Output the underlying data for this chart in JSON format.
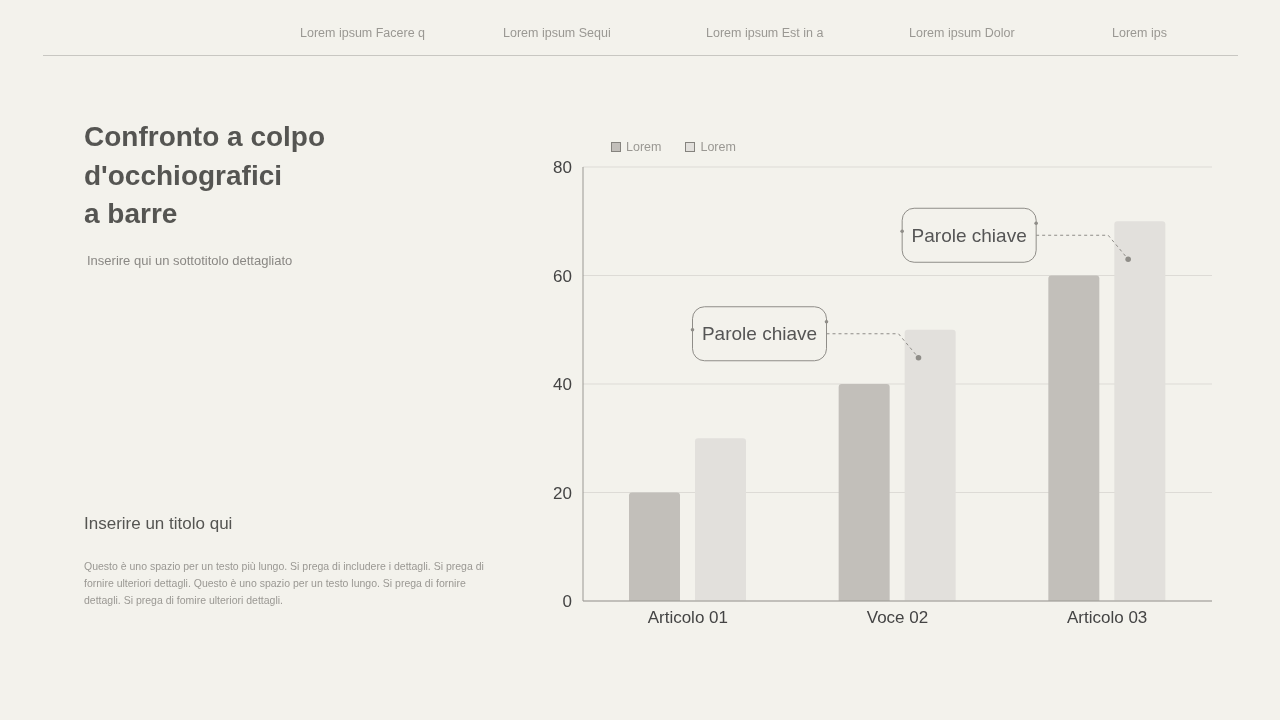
{
  "chart_data": {
    "type": "bar",
    "title": "Confronto a colpo\nd'occhiografici\na barre",
    "subtitle": "Inserire qui un sottotitolo dettagliato",
    "categories": [
      "Articolo 01",
      "Voce 02",
      "Articolo 03"
    ],
    "series": [
      {
        "name": "Lorem",
        "color": "#c2bfba",
        "values": [
          20,
          40,
          60
        ]
      },
      {
        "name": "Lorem",
        "color": "#e2e0dc",
        "values": [
          30,
          50,
          70
        ]
      }
    ],
    "ylim": [
      0,
      80
    ],
    "yticks": [
      0,
      20,
      40,
      60,
      80
    ],
    "grid": "y",
    "legend": "top left",
    "annotations": [
      "Lorem ipsum Facere q",
      "Lorem ipsum Sequi",
      "Lorem ipsum Est in a",
      "Lorem ipsum Dolor",
      "Lorem ips",
      "Parole chiave",
      "Parole chiave",
      "Inserire un titolo qui",
      "Questo è uno spazio per un testo più lungo. Si prega di includere i dettagli. Si prega di fornire ulteriori dettagli. Questo è uno spazio per un testo lungo. Si prega di fornire dettagli. Si prega di fomire ulteriori dettagli."
    ]
  }
}
